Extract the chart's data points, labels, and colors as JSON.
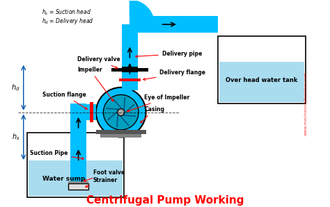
{
  "bg_color": "#ffffff",
  "blue": "#00BFFF",
  "dark_blue": "#0099CC",
  "water_blue": "#87CEEB",
  "gray": "#808080",
  "dark_gray": "#555555",
  "red": "#FF0000",
  "black": "#000000",
  "title": "Centrifugal Pump Working",
  "title_color": "#FF0000",
  "title_fontsize": 11,
  "watermark": "www.mechanicalbooster.com",
  "labels": {
    "delivery_pipe": "Delivery pipe",
    "delivery_valve": "Delivery valve",
    "impeller": "Impeller",
    "suction_flange": "Suction flange",
    "delivery_flange": "Delivery flange",
    "overhead_tank": "Over head water tank",
    "eye_of_impeller": "Eye of Impeller",
    "casing": "Casing",
    "suction_pipe": "Suction Pipe",
    "foot_valve": "Foot valve",
    "strainer": "Strainer",
    "water_sump": "Water sump",
    "legend1": "h_s = Suction head",
    "legend2": "h_d = Delivery head"
  }
}
